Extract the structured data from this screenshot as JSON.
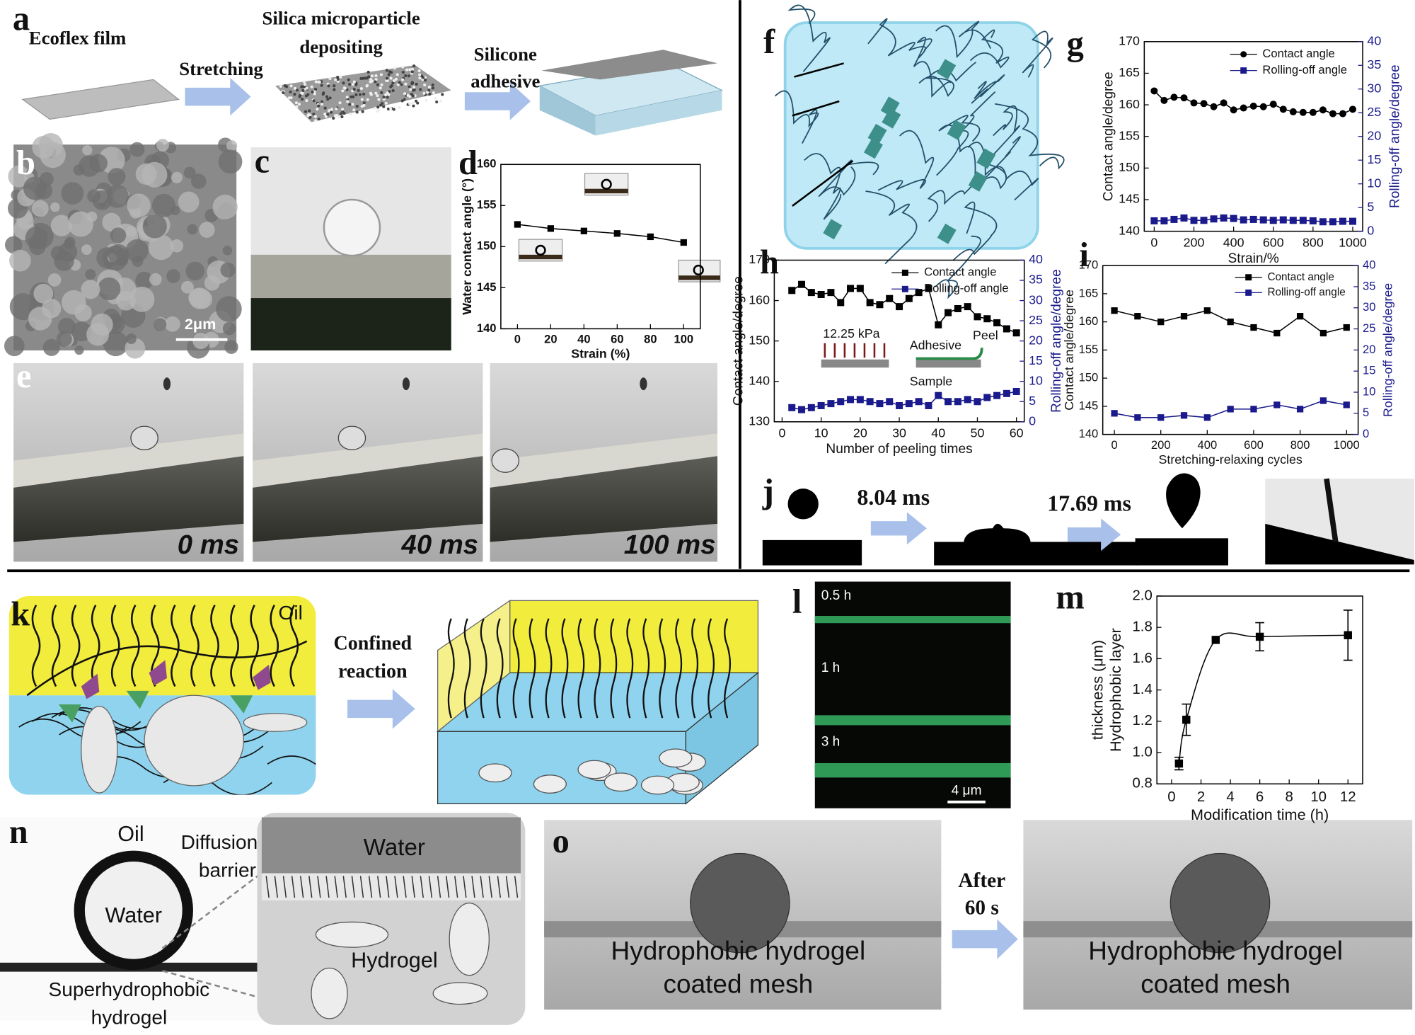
{
  "panel_labels": [
    "a",
    "b",
    "c",
    "d",
    "e",
    "f",
    "g",
    "h",
    "i",
    "j",
    "k",
    "l",
    "m",
    "n",
    "o"
  ],
  "panel_a": {
    "film": "Ecoflex film",
    "step1": "Stretching",
    "step2": [
      "Silica microparticle",
      "depositing"
    ],
    "step3": [
      "Silicone",
      "adhesive"
    ]
  },
  "panel_b": {
    "scale_bar": "2μm"
  },
  "panel_e": {
    "times": [
      "0 ms",
      "40 ms",
      "100 ms"
    ]
  },
  "panel_h_inset": {
    "pressure": "12.25 kPa",
    "adhesive": "Adhesive",
    "sample": "Sample",
    "peel": "Peel"
  },
  "panel_j": {
    "times": [
      "8.04 ms",
      "17.69 ms"
    ]
  },
  "panel_k": {
    "oil": "Oil",
    "arrow_label": [
      "Confined",
      "reaction"
    ]
  },
  "panel_l": {
    "times": [
      "0.5 h",
      "1 h",
      "3 h"
    ],
    "scale_bar": "4 μm"
  },
  "panel_n": {
    "oil": "Oil",
    "water": "Water",
    "barrier": [
      "Diffusion",
      "barrier"
    ],
    "inset_water": "Water",
    "hydrogel": "Hydrogel",
    "sample": [
      "Superhydrophobic",
      "hydrogel"
    ]
  },
  "panel_o": {
    "caption": [
      "Hydrophobic hydrogel",
      "coated mesh"
    ],
    "arrow_label": [
      "After",
      "60 s"
    ]
  },
  "chart_data": [
    {
      "type": "line",
      "xlabel": "Strain (%)",
      "ylabel": "Water contact angle (°)",
      "x": [
        0,
        20,
        40,
        60,
        80,
        100
      ],
      "series": [
        {
          "color": "#000000",
          "marker": "square",
          "values": [
            152.7,
            152.2,
            151.9,
            151.6,
            151.2,
            150.5
          ]
        }
      ],
      "xlim": [
        -10,
        110
      ],
      "xticks": [
        0,
        20,
        40,
        60,
        80,
        100
      ],
      "ylim": [
        140,
        160
      ],
      "yticks": [
        140,
        145,
        150,
        155,
        160
      ]
    },
    {
      "type": "line",
      "xlabel": "Strain/%",
      "ylabel": "Contact angle/degree",
      "y2label": "Rolling-off angle/degree",
      "x": [
        0,
        50,
        100,
        150,
        200,
        250,
        300,
        350,
        400,
        450,
        500,
        550,
        600,
        650,
        700,
        750,
        800,
        850,
        900,
        950,
        1000
      ],
      "series": [
        {
          "name": "Contact angle",
          "color": "#000000",
          "marker": "circle",
          "values": [
            162.2,
            160.7,
            161.2,
            161.1,
            160.3,
            160.2,
            159.7,
            160.3,
            159.2,
            159.5,
            159.8,
            159.7,
            160.1,
            159.3,
            158.9,
            158.8,
            158.8,
            159.2,
            158.6,
            158.6,
            159.3
          ]
        },
        {
          "name": "Rolling-off angle",
          "color": "#1a1a8c",
          "marker": "square",
          "axis": "y2",
          "values": [
            2.2,
            2.2,
            2.5,
            2.8,
            2.3,
            2.3,
            2.6,
            2.8,
            2.7,
            2.4,
            2.5,
            2.4,
            2.3,
            2.4,
            2.3,
            2.3,
            2.2,
            2.0,
            2.0,
            2.1,
            2.1
          ]
        }
      ],
      "xlim": [
        -50,
        1050
      ],
      "xticks": [
        0,
        200,
        400,
        600,
        800,
        1000
      ],
      "ylim": [
        140,
        170
      ],
      "yticks": [
        140,
        145,
        150,
        155,
        160,
        165,
        170
      ],
      "y2lim": [
        0,
        40
      ],
      "y2ticks": [
        0,
        5,
        10,
        15,
        20,
        25,
        30,
        35,
        40
      ],
      "legend": "upper right"
    },
    {
      "type": "line",
      "xlabel": "Number of peeling times",
      "ylabel": "Contact angle/degree",
      "y2label": "Rolling-off angle/degree",
      "x": [
        2.5,
        5,
        7.5,
        10,
        12.5,
        15,
        17.5,
        20,
        22.5,
        25,
        27.5,
        30,
        32.5,
        35,
        37.5,
        40,
        42.5,
        45,
        47.5,
        50,
        52.5,
        55,
        57.5,
        60
      ],
      "series": [
        {
          "name": "Contact angle",
          "color": "#000000",
          "marker": "square",
          "values": [
            162.5,
            164,
            162,
            161.5,
            162,
            159.5,
            163,
            163,
            159.5,
            159,
            160.5,
            158.5,
            160.5,
            162,
            163,
            154,
            157,
            158,
            158.5,
            156,
            155.5,
            154.5,
            153,
            152
          ]
        },
        {
          "name": "Rolling-off angle",
          "color": "#1a1a8c",
          "marker": "square",
          "axis": "y2",
          "values": [
            3.5,
            3,
            3.5,
            4,
            4.5,
            5,
            5.5,
            5.5,
            5,
            4.5,
            5,
            4,
            4.5,
            5,
            4,
            6.5,
            5,
            5,
            5.5,
            5,
            6,
            6.5,
            7,
            7.5
          ]
        }
      ],
      "xlim": [
        -2,
        62
      ],
      "xticks": [
        0,
        10,
        20,
        30,
        40,
        50,
        60
      ],
      "ylim": [
        130,
        170
      ],
      "yticks": [
        130,
        140,
        150,
        160,
        170
      ],
      "y2lim": [
        0,
        40
      ],
      "y2ticks": [
        0,
        5,
        10,
        15,
        20,
        25,
        30,
        35,
        40
      ],
      "legend": "upper right"
    },
    {
      "type": "line",
      "xlabel": "Stretching-relaxing cycles",
      "ylabel": "Contact angle/degree",
      "y2label": "Rolling-off angle/degree",
      "x": [
        0,
        100,
        200,
        300,
        400,
        500,
        600,
        700,
        800,
        900,
        1000
      ],
      "series": [
        {
          "name": "Contact angle",
          "color": "#000000",
          "marker": "square",
          "values": [
            162,
            161,
            160,
            161,
            162,
            160,
            159,
            158,
            161,
            158,
            159
          ]
        },
        {
          "name": "Rolling-off angle",
          "color": "#1a1a8c",
          "marker": "square",
          "axis": "y2",
          "values": [
            5,
            4,
            4,
            4.5,
            4,
            6,
            6,
            7,
            6,
            8,
            7
          ]
        }
      ],
      "xlim": [
        -50,
        1050
      ],
      "xticks": [
        0,
        200,
        400,
        600,
        800,
        1000
      ],
      "ylim": [
        140,
        170
      ],
      "yticks": [
        140,
        145,
        150,
        155,
        160,
        165,
        170
      ],
      "y2lim": [
        0,
        40
      ],
      "y2ticks": [
        0,
        5,
        10,
        15,
        20,
        25,
        30,
        35,
        40
      ],
      "legend": "upper right"
    },
    {
      "type": "line",
      "smooth": true,
      "xlabel": "Modification time (h)",
      "ylabel": [
        "Hydrophobic layer",
        "thickness (μm)"
      ],
      "x": [
        0.5,
        1,
        3,
        6,
        12
      ],
      "series": [
        {
          "color": "#000000",
          "marker": "square",
          "values": [
            0.93,
            1.21,
            1.72,
            1.74,
            1.75
          ],
          "errors": [
            0.04,
            0.1,
            null,
            0.09,
            0.16
          ]
        }
      ],
      "xlim": [
        -1,
        13
      ],
      "xticks": [
        0,
        2,
        4,
        6,
        8,
        10,
        12
      ],
      "ylim": [
        0.8,
        2.0
      ],
      "yticks": [
        0.8,
        {
          "value": 1,
          "label": "1.0"
        },
        1.2,
        1.4,
        1.6,
        1.8,
        {
          "value": 2,
          "label": "2.0"
        }
      ]
    }
  ]
}
